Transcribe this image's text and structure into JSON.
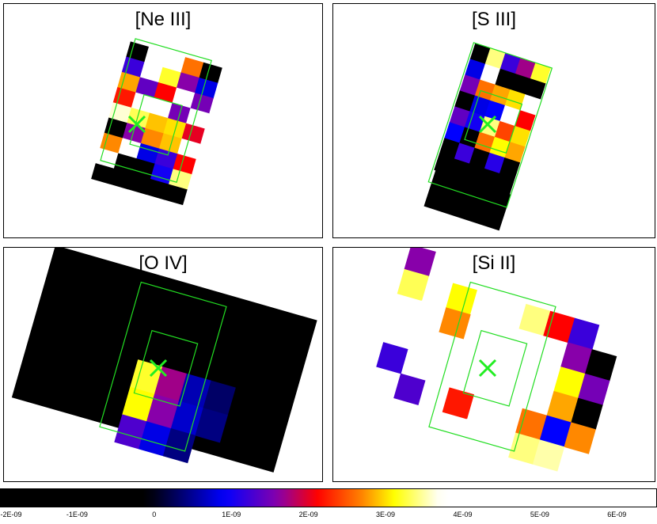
{
  "chart_data": [
    {
      "type": "heatmap",
      "title": "[Ne III]",
      "cells": [
        {
          "x": 0,
          "y": 0,
          "v": -2
        },
        {
          "x": 1,
          "y": 0,
          "v": 4.2
        },
        {
          "x": 2,
          "y": 0,
          "v": 4.2
        },
        {
          "x": 3,
          "y": 0,
          "v": 2.6
        },
        {
          "x": 4,
          "y": 0,
          "v": -0.5
        },
        {
          "x": 0,
          "y": 1,
          "v": 1.2
        },
        {
          "x": 1,
          "y": 1,
          "v": 3.8
        },
        {
          "x": 2,
          "y": 1,
          "v": 3.2
        },
        {
          "x": 3,
          "y": 1,
          "v": 1.6
        },
        {
          "x": 4,
          "y": 1,
          "v": 0.8
        },
        {
          "x": 0,
          "y": 2,
          "v": 2.8
        },
        {
          "x": 1,
          "y": 2,
          "v": 1.4
        },
        {
          "x": 2,
          "y": 2,
          "v": 2.1
        },
        {
          "x": 3,
          "y": 2,
          "v": 4.2
        },
        {
          "x": 4,
          "y": 2,
          "v": 1.5
        },
        {
          "x": 0,
          "y": 3,
          "v": 2.2
        },
        {
          "x": 1,
          "y": 3,
          "v": 4.2
        },
        {
          "x": 2,
          "y": 3,
          "v": 4.2
        },
        {
          "x": 3,
          "y": 3,
          "v": 1.5
        },
        {
          "x": 4,
          "y": 3,
          "v": 4.2
        },
        {
          "x": 0,
          "y": 4,
          "v": 3.6
        },
        {
          "x": 1,
          "y": 4,
          "v": 3.3
        },
        {
          "x": 2,
          "y": 4,
          "v": 2.9
        },
        {
          "x": 3,
          "y": 4,
          "v": 3.0
        },
        {
          "x": 4,
          "y": 4,
          "v": 2.0
        },
        {
          "x": 0,
          "y": 5,
          "v": -1
        },
        {
          "x": 1,
          "y": 5,
          "v": 1.6
        },
        {
          "x": 2,
          "y": 5,
          "v": 2.7
        },
        {
          "x": 3,
          "y": 5,
          "v": 2.9
        },
        {
          "x": 4,
          "y": 5,
          "v": 4.2
        },
        {
          "x": 0,
          "y": 6,
          "v": 2.7
        },
        {
          "x": 1,
          "y": 6,
          "v": 4.2
        },
        {
          "x": 2,
          "y": 6,
          "v": 0.8
        },
        {
          "x": 3,
          "y": 6,
          "v": 1.2
        },
        {
          "x": 4,
          "y": 6,
          "v": 2.1
        },
        {
          "x": 0,
          "y": 7,
          "v": 4.2
        },
        {
          "x": 1,
          "y": 7,
          "v": -1.5
        },
        {
          "x": 2,
          "y": 7,
          "v": -1.6
        },
        {
          "x": 3,
          "y": 7,
          "v": 1.0
        },
        {
          "x": 4,
          "y": 7,
          "v": 3.4
        },
        {
          "x": 0,
          "y": 8,
          "v": -1.8
        },
        {
          "x": 1,
          "y": 8,
          "v": -1.6
        },
        {
          "x": 2,
          "y": 8,
          "v": -1.4
        },
        {
          "x": 3,
          "y": 8,
          "v": -1.7
        },
        {
          "x": 4,
          "y": 8,
          "v": -1.9
        }
      ]
    },
    {
      "type": "heatmap",
      "title": "[S III]",
      "cells": [
        {
          "x": 0,
          "y": 0,
          "v": -1
        },
        {
          "x": 1,
          "y": 0,
          "v": 3.4
        },
        {
          "x": 2,
          "y": 0,
          "v": 1.2
        },
        {
          "x": 3,
          "y": 0,
          "v": 1.7
        },
        {
          "x": 4,
          "y": 0,
          "v": 3.2
        },
        {
          "x": 0,
          "y": 1,
          "v": 0.8
        },
        {
          "x": 1,
          "y": 1,
          "v": 4.2
        },
        {
          "x": 2,
          "y": 1,
          "v": -2
        },
        {
          "x": 3,
          "y": 1,
          "v": -2
        },
        {
          "x": 4,
          "y": 1,
          "v": -2
        },
        {
          "x": 0,
          "y": 2,
          "v": 1.5
        },
        {
          "x": 1,
          "y": 2,
          "v": 2.6
        },
        {
          "x": 2,
          "y": 2,
          "v": 2.8
        },
        {
          "x": 3,
          "y": 2,
          "v": 3.0
        },
        {
          "x": 4,
          "y": 2,
          "v": 4.2
        },
        {
          "x": 0,
          "y": 3,
          "v": -2
        },
        {
          "x": 1,
          "y": 3,
          "v": 0.8
        },
        {
          "x": 2,
          "y": 3,
          "v": 0.9
        },
        {
          "x": 3,
          "y": 3,
          "v": 4.2
        },
        {
          "x": 4,
          "y": 3,
          "v": 2.1
        },
        {
          "x": 0,
          "y": 4,
          "v": 1.4
        },
        {
          "x": 1,
          "y": 4,
          "v": 1.0
        },
        {
          "x": 2,
          "y": 4,
          "v": 3.4
        },
        {
          "x": 3,
          "y": 4,
          "v": 2.4
        },
        {
          "x": 4,
          "y": 4,
          "v": 3.0
        },
        {
          "x": 0,
          "y": 5,
          "v": 0.9
        },
        {
          "x": 1,
          "y": 5,
          "v": -2
        },
        {
          "x": 2,
          "y": 5,
          "v": 2.6
        },
        {
          "x": 3,
          "y": 5,
          "v": 3.1
        },
        {
          "x": 4,
          "y": 5,
          "v": 2.8
        },
        {
          "x": 0,
          "y": 6,
          "v": -1.5
        },
        {
          "x": 1,
          "y": 6,
          "v": 1.2
        },
        {
          "x": 2,
          "y": 6,
          "v": -1.4
        },
        {
          "x": 3,
          "y": 6,
          "v": 1.1
        },
        {
          "x": 4,
          "y": 6,
          "v": -1.3
        },
        {
          "x": 0,
          "y": 7,
          "v": -2
        },
        {
          "x": 1,
          "y": 7,
          "v": -2
        },
        {
          "x": 2,
          "y": 7,
          "v": -2
        },
        {
          "x": 3,
          "y": 7,
          "v": -2
        },
        {
          "x": 4,
          "y": 7,
          "v": -2
        }
      ]
    },
    {
      "type": "heatmap",
      "title": "[O IV]",
      "cells": [
        {
          "x": 1,
          "y": 1,
          "v": -0.3
        },
        {
          "x": 4,
          "y": 2,
          "v": -0.2
        },
        {
          "x": 2,
          "y": 2,
          "v": -0.8
        },
        {
          "x": 3,
          "y": 2,
          "v": -0.5
        },
        {
          "x": 2,
          "y": 3,
          "v": 3.2
        },
        {
          "x": 3,
          "y": 3,
          "v": 1.7
        },
        {
          "x": 4,
          "y": 3,
          "v": 0.6
        },
        {
          "x": 5,
          "y": 3,
          "v": 0.3
        },
        {
          "x": 2,
          "y": 4,
          "v": 3.1
        },
        {
          "x": 3,
          "y": 4,
          "v": 1.6
        },
        {
          "x": 4,
          "y": 4,
          "v": 0.7
        },
        {
          "x": 5,
          "y": 4,
          "v": 0.4
        },
        {
          "x": 2,
          "y": 5,
          "v": 1.3
        },
        {
          "x": 3,
          "y": 5,
          "v": 0.8
        },
        {
          "x": 4,
          "y": 5,
          "v": 0.4
        }
      ]
    },
    {
      "type": "heatmap",
      "title": "[Si II]",
      "cells": [
        {
          "x": 0,
          "y": 0,
          "v": 1.6
        },
        {
          "x": 0,
          "y": 1,
          "v": 3.3
        },
        {
          "x": 1,
          "y": 2,
          "v": 3.8
        },
        {
          "x": 2,
          "y": 1,
          "v": 3.1
        },
        {
          "x": 3,
          "y": 1,
          "v": 3.8
        },
        {
          "x": 2,
          "y": 2,
          "v": 2.7
        },
        {
          "x": 5,
          "y": 1,
          "v": 3.4
        },
        {
          "x": 6,
          "y": 1,
          "v": 2.1
        },
        {
          "x": 7,
          "y": 1,
          "v": 1.2
        },
        {
          "x": 7,
          "y": 2,
          "v": 1.6
        },
        {
          "x": 8,
          "y": 2,
          "v": -2
        },
        {
          "x": 7,
          "y": 3,
          "v": 3.1
        },
        {
          "x": 8,
          "y": 3,
          "v": 1.5
        },
        {
          "x": 7,
          "y": 4,
          "v": 2.8
        },
        {
          "x": 8,
          "y": 4,
          "v": -1.2
        },
        {
          "x": 6,
          "y": 5,
          "v": 2.6
        },
        {
          "x": 7,
          "y": 5,
          "v": 0.9
        },
        {
          "x": 8,
          "y": 5,
          "v": 2.7
        },
        {
          "x": 6,
          "y": 6,
          "v": 3.4
        },
        {
          "x": 7,
          "y": 6,
          "v": 3.5
        },
        {
          "x": 0,
          "y": 4,
          "v": 1.2
        },
        {
          "x": 1,
          "y": 5,
          "v": 1.3
        },
        {
          "x": 3,
          "y": 5,
          "v": 2.2
        },
        {
          "x": 4,
          "y": 6,
          "v": 3.9
        }
      ]
    }
  ],
  "colorbar": {
    "min": -2e-09,
    "max": 6.5e-09,
    "tick_labels": [
      "-2E-09",
      "-1E-09",
      "0",
      "1E-09",
      "2E-09",
      "3E-09",
      "4E-09",
      "5E-09",
      "6E-09"
    ],
    "tick_values": [
      -2,
      -1,
      0,
      1,
      2,
      3,
      4,
      5,
      6
    ]
  },
  "colors": {
    "outline": "#22dd22",
    "marker": "#22ee22",
    "stops": [
      "#000000",
      "#000000",
      "#0000ff",
      "#8800aa",
      "#ff0000",
      "#ff8800",
      "#ffff00",
      "#ffffff"
    ]
  }
}
